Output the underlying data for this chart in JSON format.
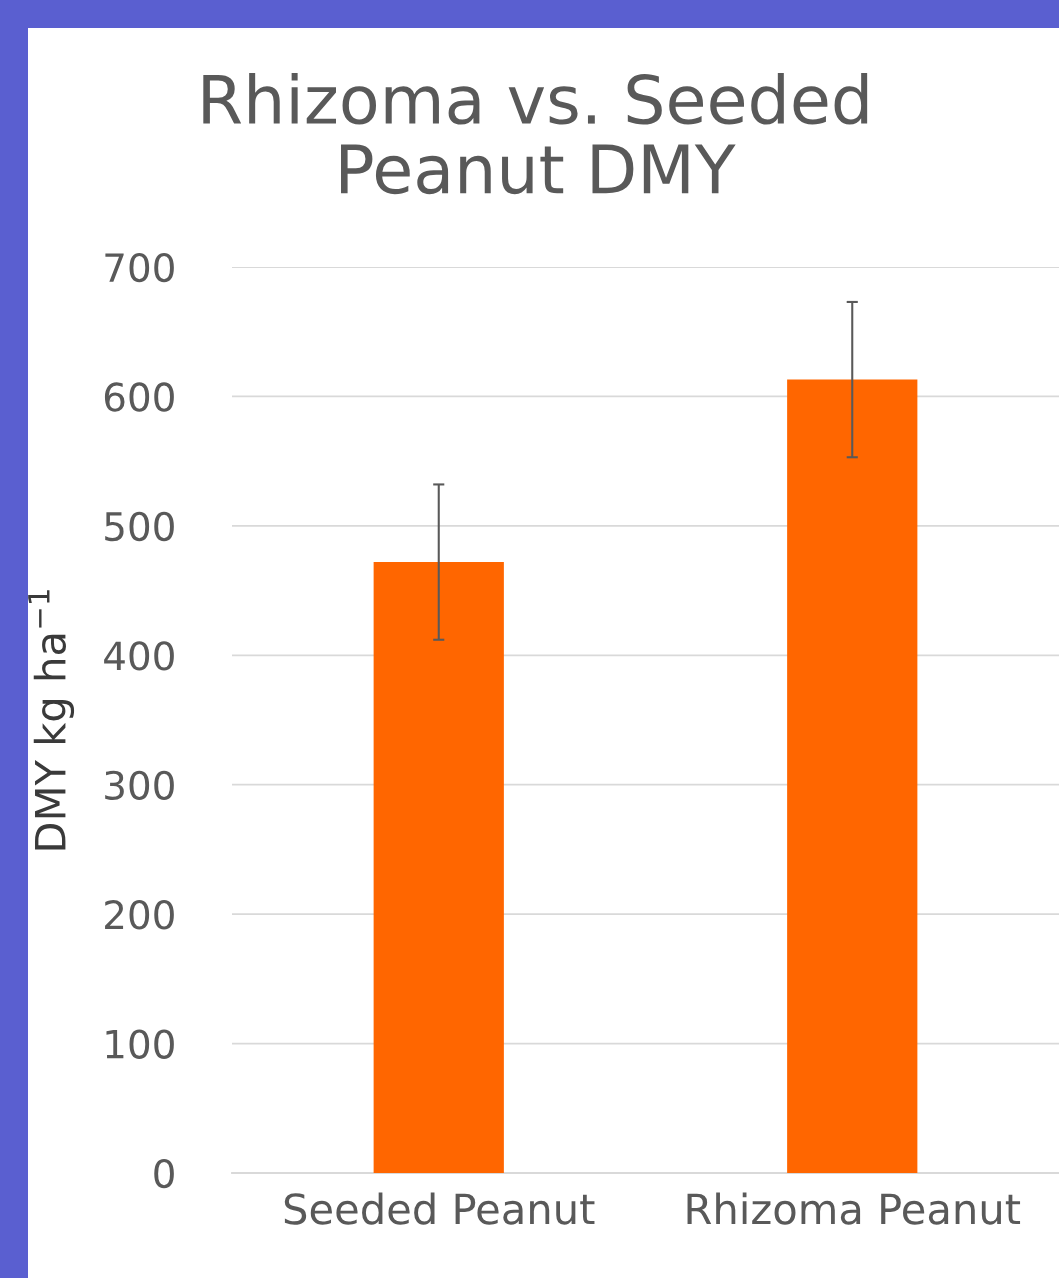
{
  "chart_data": {
    "type": "bar",
    "title": "Rhizoma vs. Seeded\nPeanut DMY",
    "ylabel": "DMY kg ha$^{−1}$",
    "categories": [
      "Seeded Peanut",
      "Rhizoma Peanut"
    ],
    "values": [
      472,
      613
    ],
    "errors": [
      60,
      60
    ],
    "color": "#ff6600",
    "ylim": [
      0,
      700
    ],
    "yticks": [
      0,
      100,
      200,
      300,
      400,
      500,
      600,
      700
    ],
    "grid": "y"
  }
}
